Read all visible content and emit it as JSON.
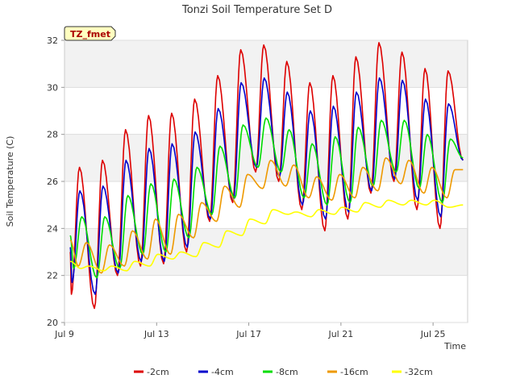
{
  "chart_data": {
    "type": "line",
    "title": "Tonzi Soil Temperature Set D",
    "xlabel": "Time",
    "ylabel": "Soil Temperature (C)",
    "badge": "TZ_fmet",
    "ylim": [
      20,
      32
    ],
    "xlim": [
      9.0,
      26.5
    ],
    "yticks": [
      20,
      22,
      24,
      26,
      28,
      30,
      32
    ],
    "xticks": [
      {
        "value": 9,
        "label": "Jul 9"
      },
      {
        "value": 13,
        "label": "Jul 13"
      },
      {
        "value": 17,
        "label": "Jul 17"
      },
      {
        "value": 21,
        "label": "Jul 21"
      },
      {
        "value": 25,
        "label": "Jul 25"
      }
    ],
    "bands": [
      [
        22,
        24
      ],
      [
        26,
        28
      ],
      [
        30,
        32
      ]
    ],
    "days": [
      9.3,
      10.3,
      11.3,
      12.3,
      13.3,
      14.3,
      15.3,
      16.3,
      17.3,
      18.3,
      19.3,
      20.3,
      21.3,
      22.3,
      23.3,
      24.3,
      25.3,
      26.3
    ],
    "series": [
      {
        "name": "-2cm",
        "color": "#dd0000",
        "x_start": 9.25,
        "x_end": 26.3,
        "start_value": 23.0,
        "end_value": 26.9,
        "peak_phase": 0.65,
        "trough_phase": 0.25,
        "peaks": [
          26.6,
          26.9,
          28.2,
          28.8,
          28.9,
          29.5,
          30.5,
          31.6,
          31.8,
          31.1,
          30.2,
          30.5,
          31.3,
          31.9,
          31.5,
          30.8,
          30.7
        ],
        "troughs": [
          21.2,
          20.6,
          22.0,
          22.4,
          22.5,
          23.0,
          24.3,
          25.1,
          26.4,
          26.0,
          24.8,
          23.9,
          24.4,
          25.5,
          26.0,
          24.8,
          24.0
        ]
      },
      {
        "name": "-4cm",
        "color": "#0000cc",
        "x_start": 9.25,
        "x_end": 26.3,
        "start_value": 23.2,
        "end_value": 26.9,
        "peak_phase": 0.67,
        "trough_phase": 0.28,
        "peaks": [
          25.6,
          25.8,
          26.9,
          27.4,
          27.6,
          28.1,
          29.1,
          30.2,
          30.4,
          29.8,
          29.0,
          29.2,
          29.8,
          30.4,
          30.3,
          29.5,
          29.3
        ],
        "troughs": [
          21.7,
          21.2,
          22.1,
          22.6,
          22.6,
          23.2,
          24.4,
          25.2,
          26.6,
          26.2,
          25.0,
          24.4,
          24.7,
          25.6,
          26.1,
          25.2,
          24.5
        ]
      },
      {
        "name": "-8cm",
        "color": "#00dd00",
        "x_start": 9.25,
        "x_end": 26.3,
        "start_value": 23.7,
        "end_value": 27.0,
        "peak_phase": 0.75,
        "trough_phase": 0.35,
        "peaks": [
          24.5,
          24.5,
          25.4,
          25.9,
          26.1,
          26.6,
          27.5,
          28.4,
          28.7,
          28.2,
          27.6,
          27.9,
          28.3,
          28.6,
          28.6,
          28.0,
          27.8
        ],
        "troughs": [
          22.3,
          21.9,
          22.3,
          22.9,
          23.0,
          23.6,
          24.6,
          25.3,
          26.6,
          26.4,
          25.3,
          25.0,
          25.1,
          25.8,
          26.4,
          25.7,
          25.1
        ]
      },
      {
        "name": "-16cm",
        "color": "#ee9900",
        "x_start": 9.25,
        "x_end": 26.3,
        "start_value": 23.5,
        "end_value": 26.5,
        "peak_phase": 0.95,
        "trough_phase": 0.55,
        "peaks": [
          23.4,
          23.3,
          23.9,
          24.4,
          24.6,
          25.1,
          25.8,
          26.3,
          26.9,
          26.7,
          26.2,
          26.3,
          26.6,
          27.0,
          26.9,
          26.6,
          26.5
        ],
        "troughs": [
          22.4,
          22.1,
          22.4,
          22.7,
          22.9,
          23.6,
          24.3,
          24.9,
          25.7,
          25.8,
          25.3,
          25.2,
          25.3,
          25.6,
          25.9,
          25.5,
          25.3
        ]
      },
      {
        "name": "-32cm",
        "color": "#ffff00",
        "x_start": 9.25,
        "x_end": 26.3,
        "start_value": 22.6,
        "end_value": 25.0,
        "peak_phase": 0.05,
        "trough_phase": 0.65,
        "peaks": [
          22.5,
          22.4,
          22.4,
          22.6,
          22.9,
          23.0,
          23.4,
          23.9,
          24.4,
          24.8,
          24.7,
          24.8,
          24.9,
          25.1,
          25.2,
          25.2,
          25.2
        ],
        "troughs": [
          22.3,
          22.2,
          22.2,
          22.4,
          22.7,
          22.8,
          23.2,
          23.7,
          24.2,
          24.6,
          24.5,
          24.6,
          24.7,
          24.9,
          25.0,
          25.0,
          24.9
        ]
      }
    ]
  }
}
